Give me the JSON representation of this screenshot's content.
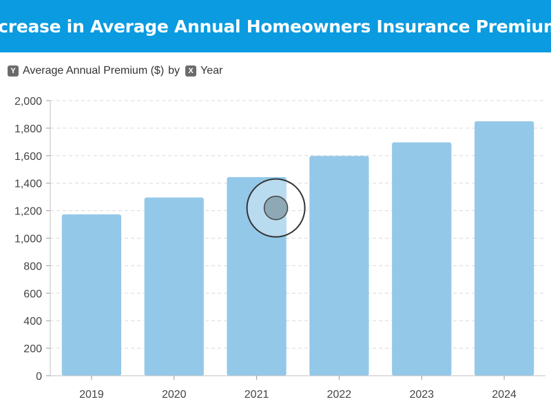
{
  "header": {
    "title": "Increase in Average Annual Homeowners Insurance Premiums"
  },
  "legend": {
    "y_badge": "Y",
    "y_label": "Average Annual Premium ($)",
    "connector": "by",
    "x_badge": "X",
    "x_label": "Year"
  },
  "colors": {
    "title_bar": "#0a9be0",
    "bar": "#94c8e8",
    "bar_highlight": "#b8dbf0"
  },
  "chart_data": {
    "type": "bar",
    "categories": [
      "2019",
      "2020",
      "2021",
      "2022",
      "2023",
      "2024"
    ],
    "values": [
      1173,
      1296,
      1444,
      1598,
      1697,
      1850
    ],
    "ylim": [
      0,
      2000
    ],
    "yticks": [
      "0",
      "200",
      "400",
      "600",
      "800",
      "1,000",
      "1,200",
      "1,400",
      "1,600",
      "1,800",
      "2,000"
    ],
    "grid": true
  }
}
